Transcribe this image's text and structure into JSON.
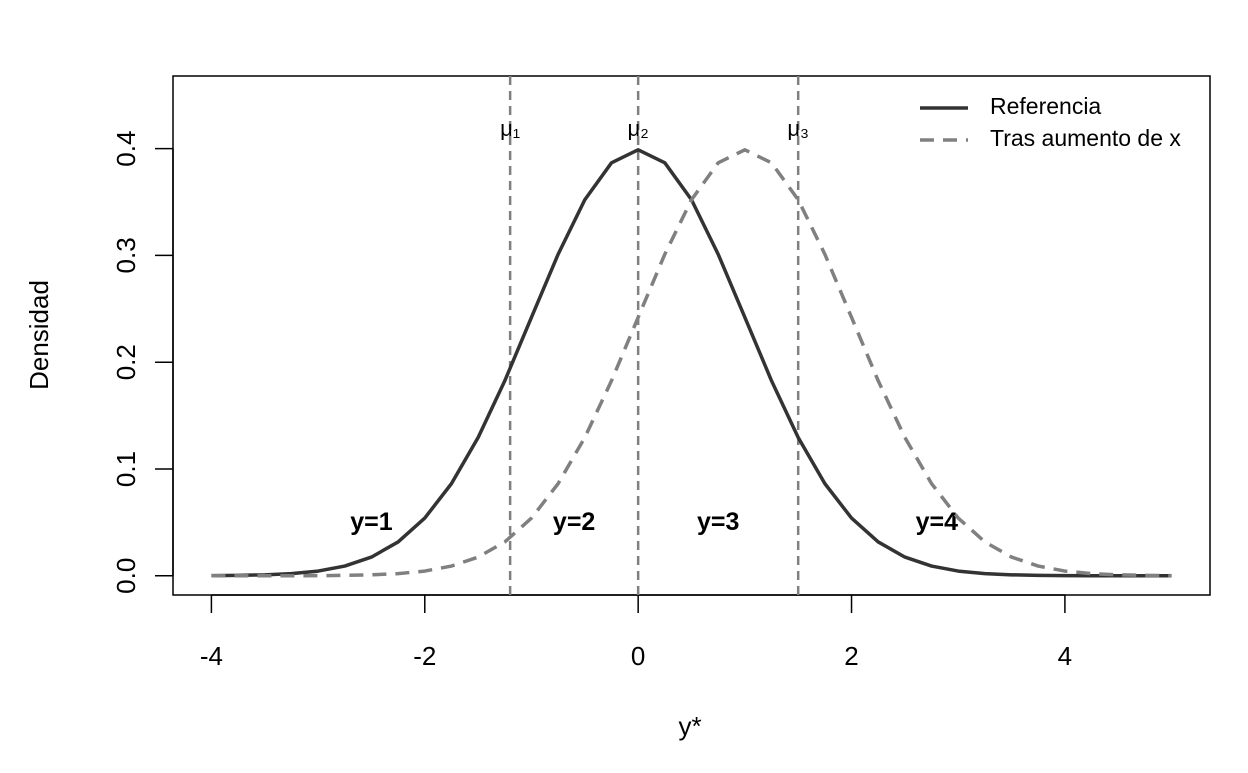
{
  "chart_data": {
    "type": "line",
    "xlabel": "y*",
    "ylabel": "Densidad",
    "x": [
      -4,
      -3.75,
      -3.5,
      -3.25,
      -3,
      -2.75,
      -2.5,
      -2.25,
      -2,
      -1.75,
      -1.5,
      -1.25,
      -1,
      -0.75,
      -0.5,
      -0.25,
      0,
      0.25,
      0.5,
      0.75,
      1,
      1.25,
      1.5,
      1.75,
      2,
      2.25,
      2.5,
      2.75,
      3,
      3.25,
      3.5,
      3.75,
      4,
      4.25,
      4.5,
      4.75,
      5
    ],
    "series": [
      {
        "name": "Referencia",
        "color": "#333333",
        "dash": false,
        "values": [
          0.0001,
          0.0004,
          0.0009,
          0.002,
          0.0044,
          0.0091,
          0.0175,
          0.0317,
          0.054,
          0.0863,
          0.1295,
          0.1826,
          0.242,
          0.3011,
          0.3521,
          0.3867,
          0.3989,
          0.3867,
          0.3521,
          0.3011,
          0.242,
          0.1826,
          0.1295,
          0.0863,
          0.054,
          0.0317,
          0.0175,
          0.0091,
          0.0044,
          0.002,
          0.0009,
          0.0004,
          0.0001,
          0,
          0,
          0,
          0
        ]
      },
      {
        "name": "Tras aumento de x",
        "color": "#808080",
        "dash": true,
        "values": [
          0,
          0,
          0,
          0,
          0.0001,
          0.0004,
          0.0009,
          0.002,
          0.0044,
          0.0091,
          0.0175,
          0.0317,
          0.054,
          0.0863,
          0.1295,
          0.1826,
          0.242,
          0.3011,
          0.3521,
          0.3867,
          0.3989,
          0.3867,
          0.3521,
          0.3011,
          0.242,
          0.1826,
          0.1295,
          0.0863,
          0.054,
          0.0317,
          0.0175,
          0.0091,
          0.0044,
          0.002,
          0.0009,
          0.0004,
          0.0001
        ]
      }
    ],
    "thresholds": [
      {
        "label": "μ₁",
        "value": -1.2
      },
      {
        "label": "μ₂",
        "value": 0
      },
      {
        "label": "μ₃",
        "value": 1.5
      }
    ],
    "threshold_color": "#808080",
    "regions": [
      "y=1",
      "y=2",
      "y=3",
      "y=4"
    ],
    "xlim": [
      -4.36,
      5.36
    ],
    "ylim": [
      -0.018,
      0.468
    ],
    "xticks": [
      -4,
      -2,
      0,
      2,
      4
    ],
    "yticks": [
      {
        "value": 0,
        "label": "0.0"
      },
      0.1,
      0.2,
      0.3,
      0.4
    ],
    "legend": "top-right"
  }
}
